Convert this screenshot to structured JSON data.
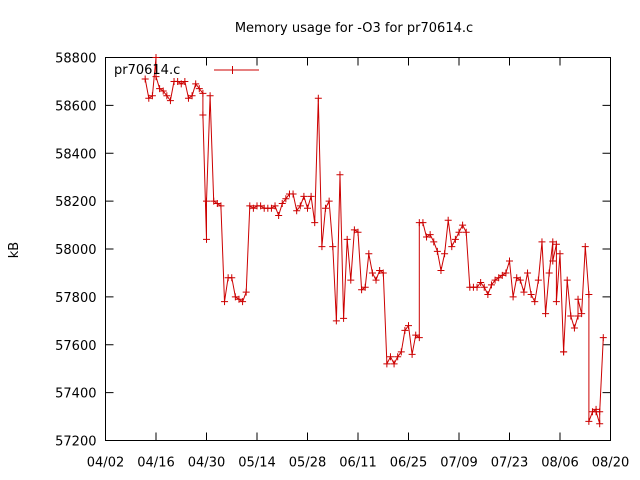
{
  "chart_data": {
    "type": "line",
    "title": "Memory usage for -O3 for pr70614.c",
    "ylabel": "kB",
    "xlabel": "",
    "x_ticks": [
      "04/02",
      "04/16",
      "04/30",
      "05/14",
      "05/28",
      "06/11",
      "06/25",
      "07/09",
      "07/23",
      "08/06",
      "08/20"
    ],
    "y_ticks": [
      57200,
      57400,
      57600,
      57800,
      58000,
      58200,
      58400,
      58600,
      58800
    ],
    "xlim": [
      "04/02",
      "08/20"
    ],
    "ylim": [
      57200,
      58800
    ],
    "grid": false,
    "legend_position": "top-left",
    "line_color": "#cc0000",
    "series": [
      {
        "name": "pr70614.c",
        "points": [
          [
            "04/13",
            58710
          ],
          [
            "04/14",
            58630
          ],
          [
            "04/15",
            58640
          ],
          [
            "04/16",
            58800
          ],
          [
            "04/16",
            58720
          ],
          [
            "04/17",
            58670
          ],
          [
            "04/18",
            58660
          ],
          [
            "04/19",
            58640
          ],
          [
            "04/20",
            58620
          ],
          [
            "04/21",
            58700
          ],
          [
            "04/22",
            58700
          ],
          [
            "04/23",
            58690
          ],
          [
            "04/24",
            58700
          ],
          [
            "04/25",
            58630
          ],
          [
            "04/26",
            58640
          ],
          [
            "04/27",
            58690
          ],
          [
            "04/28",
            58670
          ],
          [
            "04/29",
            58650
          ],
          [
            "04/29",
            58560
          ],
          [
            "04/30",
            58040
          ],
          [
            "04/30",
            58200
          ],
          [
            "05/01",
            58640
          ],
          [
            "05/02",
            58200
          ],
          [
            "05/03",
            58190
          ],
          [
            "05/04",
            58180
          ],
          [
            "05/05",
            57780
          ],
          [
            "05/06",
            57880
          ],
          [
            "05/07",
            57880
          ],
          [
            "05/08",
            57800
          ],
          [
            "05/09",
            57790
          ],
          [
            "05/10",
            57780
          ],
          [
            "05/11",
            57820
          ],
          [
            "05/12",
            58180
          ],
          [
            "05/13",
            58170
          ],
          [
            "05/14",
            58180
          ],
          [
            "05/15",
            58180
          ],
          [
            "05/16",
            58170
          ],
          [
            "05/17",
            58170
          ],
          [
            "05/18",
            58170
          ],
          [
            "05/19",
            58180
          ],
          [
            "05/20",
            58140
          ],
          [
            "05/21",
            58190
          ],
          [
            "05/22",
            58210
          ],
          [
            "05/23",
            58230
          ],
          [
            "05/24",
            58230
          ],
          [
            "05/25",
            58160
          ],
          [
            "05/26",
            58180
          ],
          [
            "05/27",
            58220
          ],
          [
            "05/28",
            58170
          ],
          [
            "05/29",
            58220
          ],
          [
            "05/30",
            58110
          ],
          [
            "05/31",
            58630
          ],
          [
            "06/01",
            58010
          ],
          [
            "06/02",
            58170
          ],
          [
            "06/03",
            58200
          ],
          [
            "06/04",
            58010
          ],
          [
            "06/05",
            57700
          ],
          [
            "06/06",
            58310
          ],
          [
            "06/07",
            57710
          ],
          [
            "06/08",
            58040
          ],
          [
            "06/09",
            57870
          ],
          [
            "06/10",
            58080
          ],
          [
            "06/11",
            58070
          ],
          [
            "06/12",
            57830
          ],
          [
            "06/13",
            57840
          ],
          [
            "06/14",
            57980
          ],
          [
            "06/15",
            57900
          ],
          [
            "06/16",
            57870
          ],
          [
            "06/17",
            57910
          ],
          [
            "06/18",
            57900
          ],
          [
            "06/19",
            57520
          ],
          [
            "06/20",
            57550
          ],
          [
            "06/21",
            57520
          ],
          [
            "06/22",
            57550
          ],
          [
            "06/23",
            57570
          ],
          [
            "06/24",
            57660
          ],
          [
            "06/25",
            57680
          ],
          [
            "06/26",
            57560
          ],
          [
            "06/27",
            57640
          ],
          [
            "06/28",
            57630
          ],
          [
            "06/28",
            58110
          ],
          [
            "06/29",
            58110
          ],
          [
            "06/30",
            58050
          ],
          [
            "07/01",
            58060
          ],
          [
            "07/02",
            58030
          ],
          [
            "07/03",
            57990
          ],
          [
            "07/04",
            57910
          ],
          [
            "07/05",
            57980
          ],
          [
            "07/06",
            58120
          ],
          [
            "07/07",
            58010
          ],
          [
            "07/08",
            58040
          ],
          [
            "07/09",
            58070
          ],
          [
            "07/10",
            58100
          ],
          [
            "07/11",
            58070
          ],
          [
            "07/12",
            57840
          ],
          [
            "07/13",
            57840
          ],
          [
            "07/14",
            57840
          ],
          [
            "07/15",
            57860
          ],
          [
            "07/16",
            57840
          ],
          [
            "07/17",
            57810
          ],
          [
            "07/18",
            57850
          ],
          [
            "07/19",
            57870
          ],
          [
            "07/20",
            57880
          ],
          [
            "07/21",
            57890
          ],
          [
            "07/22",
            57900
          ],
          [
            "07/23",
            57950
          ],
          [
            "07/24",
            57800
          ],
          [
            "07/25",
            57880
          ],
          [
            "07/26",
            57870
          ],
          [
            "07/27",
            57820
          ],
          [
            "07/28",
            57900
          ],
          [
            "07/29",
            57810
          ],
          [
            "07/30",
            57780
          ],
          [
            "07/31",
            57870
          ],
          [
            "08/01",
            58030
          ],
          [
            "08/02",
            57730
          ],
          [
            "08/03",
            57900
          ],
          [
            "08/04",
            58030
          ],
          [
            "08/04",
            57950
          ],
          [
            "08/05",
            58020
          ],
          [
            "08/05",
            57780
          ],
          [
            "08/06",
            57980
          ],
          [
            "08/07",
            57570
          ],
          [
            "08/07",
            57570
          ],
          [
            "08/08",
            57870
          ],
          [
            "08/09",
            57720
          ],
          [
            "08/10",
            57670
          ],
          [
            "08/11",
            57720
          ],
          [
            "08/11",
            57790
          ],
          [
            "08/12",
            57730
          ],
          [
            "08/13",
            58010
          ],
          [
            "08/14",
            57810
          ],
          [
            "08/14",
            57280
          ],
          [
            "08/15",
            57320
          ],
          [
            "08/16",
            57330
          ],
          [
            "08/16",
            57320
          ],
          [
            "08/17",
            57270
          ],
          [
            "08/17",
            57320
          ],
          [
            "08/18",
            57630
          ]
        ]
      }
    ]
  }
}
